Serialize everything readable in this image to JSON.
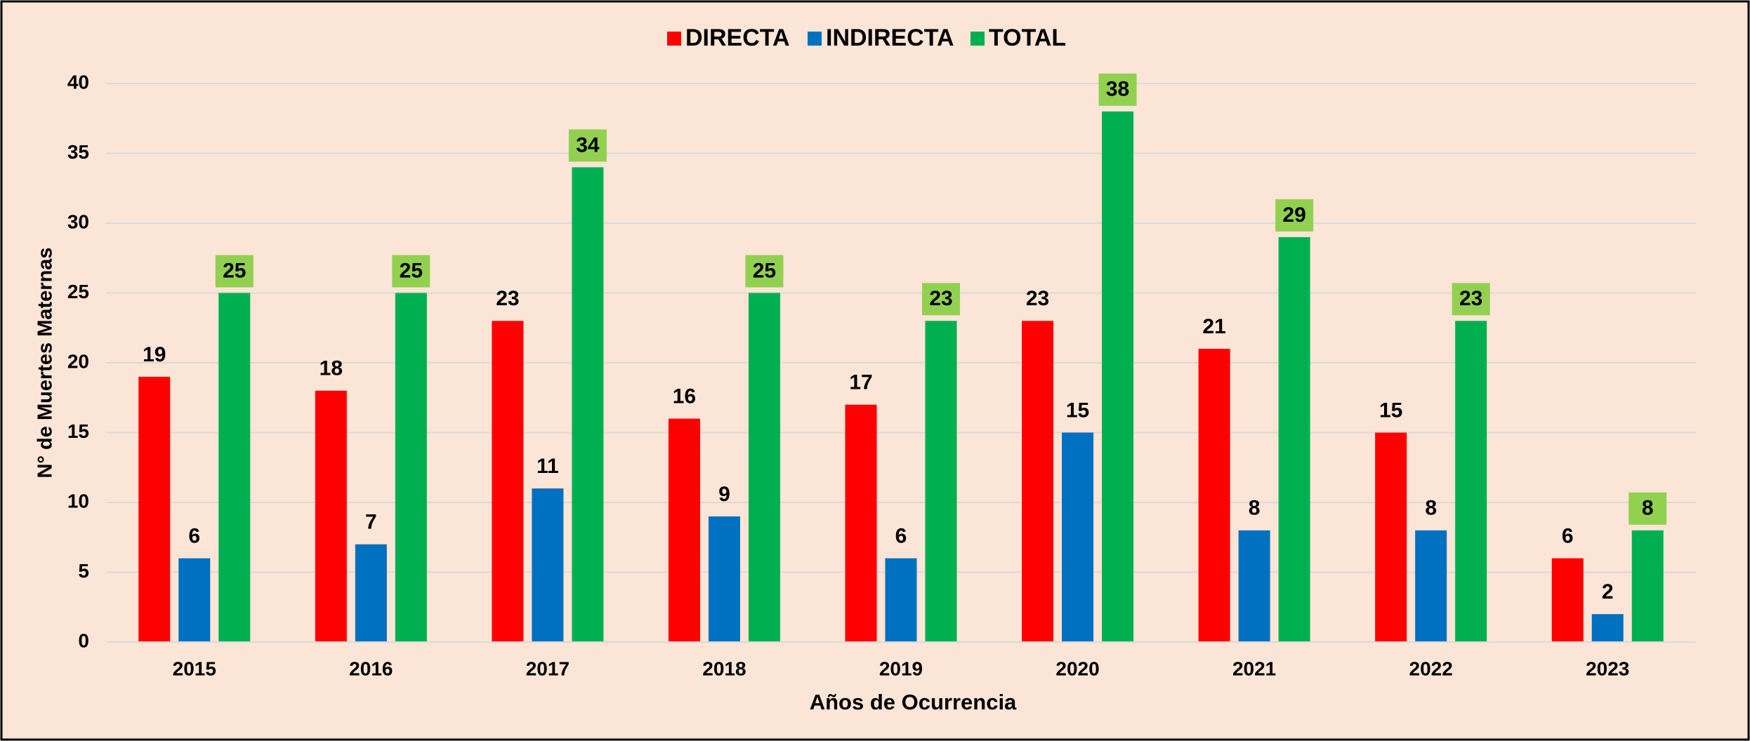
{
  "chart_data": {
    "type": "bar",
    "categories": [
      "2015",
      "2016",
      "2017",
      "2018",
      "2019",
      "2020",
      "2021",
      "2022",
      "2023"
    ],
    "series": [
      {
        "name": "DIRECTA",
        "color": "#ff0000",
        "values": [
          19,
          18,
          23,
          16,
          17,
          23,
          21,
          15,
          6
        ]
      },
      {
        "name": "INDIRECTA",
        "color": "#0070c0",
        "values": [
          6,
          7,
          11,
          9,
          6,
          15,
          8,
          8,
          2
        ]
      },
      {
        "name": "TOTAL",
        "color": "#00b050",
        "values": [
          25,
          25,
          34,
          25,
          23,
          38,
          29,
          23,
          8
        ]
      }
    ],
    "xlabel": "Años de Ocurrencia",
    "ylabel": "N° de Muertes Maternas",
    "ylim": [
      0,
      40
    ],
    "yticks": [
      0,
      5,
      10,
      15,
      20,
      25,
      30,
      35,
      40
    ],
    "grid": true,
    "legend": "top"
  }
}
